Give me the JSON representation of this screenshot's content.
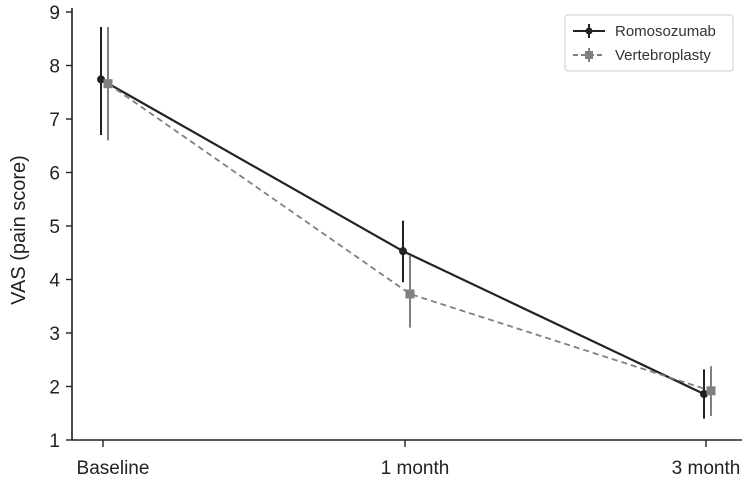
{
  "chart_data": {
    "type": "line",
    "title": "",
    "xlabel": "",
    "ylabel": "VAS (pain score)",
    "categories": [
      "Baseline",
      "1 month",
      "3 month"
    ],
    "ylim": [
      1,
      9
    ],
    "yticks": [
      1,
      2,
      3,
      4,
      5,
      6,
      7,
      8,
      9
    ],
    "grid": false,
    "legend_position": "top-right",
    "series": [
      {
        "name": "Romosozumab",
        "values": [
          7.74,
          4.53,
          1.86
        ],
        "error_low": [
          6.7,
          3.95,
          1.4
        ],
        "error_high": [
          8.72,
          5.1,
          2.32
        ],
        "color": "#222222",
        "line_style": "solid",
        "marker": "circle"
      },
      {
        "name": "Vertebroplasty",
        "values": [
          7.66,
          3.73,
          1.92
        ],
        "error_low": [
          6.6,
          3.1,
          1.45
        ],
        "error_high": [
          8.72,
          4.45,
          2.38
        ],
        "color": "#808080",
        "line_style": "dashed",
        "marker": "square"
      }
    ]
  }
}
